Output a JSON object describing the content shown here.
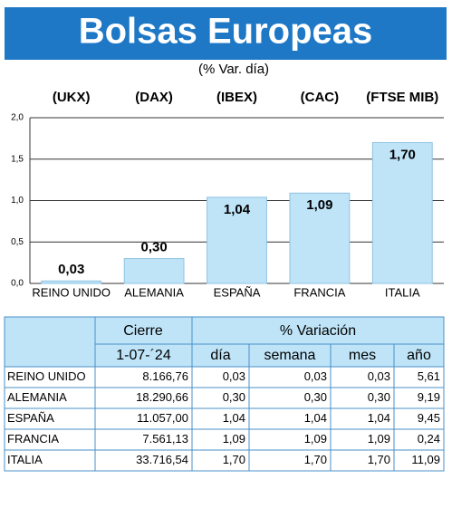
{
  "chart_data": {
    "type": "bar",
    "title": "Bolsas Europeas",
    "subtitle": "(% Var. día)",
    "categories": [
      "REINO UNIDO",
      "ALEMANIA",
      "ESPAÑA",
      "FRANCIA",
      "ITALIA"
    ],
    "index_labels": [
      "(UKX)",
      "(DAX)",
      "(IBEX)",
      "(CAC)",
      "(FTSE MIB)"
    ],
    "values": [
      0.03,
      0.3,
      1.04,
      1.09,
      1.7
    ],
    "value_labels": [
      "0,03",
      "0,30",
      "1,04",
      "1,09",
      "1,70"
    ],
    "color": "#bfe4f8",
    "ylim": [
      0,
      2
    ],
    "yticks": [
      {
        "value": 0,
        "label": "0,0"
      },
      {
        "value": 0.5,
        "label": "0,5"
      },
      {
        "value": 1,
        "label": "1,0"
      },
      {
        "value": 1.5,
        "label": "1,5"
      },
      {
        "value": 2,
        "label": "2,0"
      }
    ],
    "grid": true
  },
  "table": {
    "header_top": [
      "Cierre",
      "% Variación"
    ],
    "header": [
      "1-07-´24",
      "día",
      "semana",
      "mes",
      "año"
    ],
    "rows": [
      [
        "REINO UNIDO",
        "8.166,76",
        "0,03",
        "0,03",
        "0,03",
        "5,61"
      ],
      [
        "ALEMANIA",
        "18.290,66",
        "0,30",
        "0,30",
        "0,30",
        "9,19"
      ],
      [
        "ESPAÑA",
        "11.057,00",
        "1,04",
        "1,04",
        "1,04",
        "9,45"
      ],
      [
        "FRANCIA",
        "7.561,13",
        "1,09",
        "1,09",
        "1,09",
        "0,24"
      ],
      [
        "ITALIA",
        "33.716,54",
        "1,70",
        "1,70",
        "1,70",
        "11,09"
      ]
    ]
  }
}
